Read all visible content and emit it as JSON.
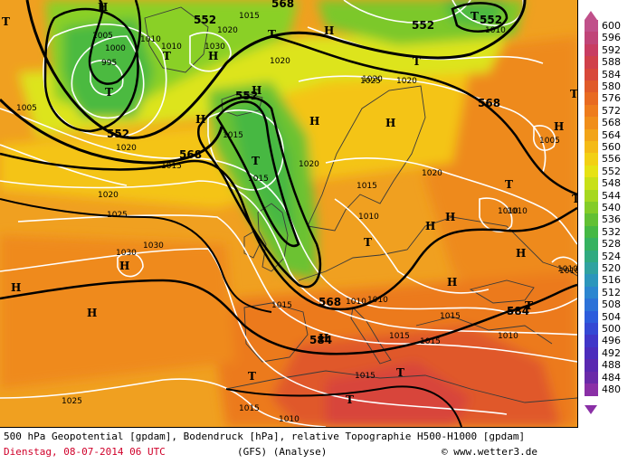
{
  "colors": {
    "background_orange": "#f0a020",
    "coast": "#3a3a3a"
  },
  "legend": {
    "items": [
      {
        "value": "600",
        "color": "#c0508a"
      },
      {
        "value": "596",
        "color": "#c04478"
      },
      {
        "value": "592",
        "color": "#c83c62"
      },
      {
        "value": "588",
        "color": "#d0404a"
      },
      {
        "value": "584",
        "color": "#d8483a"
      },
      {
        "value": "580",
        "color": "#e05a28"
      },
      {
        "value": "576",
        "color": "#e86a20"
      },
      {
        "value": "572",
        "color": "#ee7c1c"
      },
      {
        "value": "568",
        "color": "#f08e1a"
      },
      {
        "value": "564",
        "color": "#f2a418"
      },
      {
        "value": "560",
        "color": "#f4ba16"
      },
      {
        "value": "556",
        "color": "#f2d014"
      },
      {
        "value": "552",
        "color": "#e6e214"
      },
      {
        "value": "548",
        "color": "#c8e018"
      },
      {
        "value": "544",
        "color": "#a6d820"
      },
      {
        "value": "540",
        "color": "#84cc28"
      },
      {
        "value": "536",
        "color": "#62c034"
      },
      {
        "value": "532",
        "color": "#46b844"
      },
      {
        "value": "528",
        "color": "#36b260"
      },
      {
        "value": "524",
        "color": "#30aa80"
      },
      {
        "value": "520",
        "color": "#30a2a0"
      },
      {
        "value": "516",
        "color": "#2c96bc"
      },
      {
        "value": "512",
        "color": "#2c86d0"
      },
      {
        "value": "508",
        "color": "#2c72d8"
      },
      {
        "value": "504",
        "color": "#2c5cdc"
      },
      {
        "value": "500",
        "color": "#3448d4"
      },
      {
        "value": "496",
        "color": "#4036c8"
      },
      {
        "value": "492",
        "color": "#4c2cbc"
      },
      {
        "value": "488",
        "color": "#5a28b0"
      },
      {
        "value": "484",
        "color": "#6a2aa8"
      },
      {
        "value": "480",
        "color": "#8a2fa6"
      }
    ]
  },
  "map": {
    "geopotential_labels": [
      {
        "text": "552"
      },
      {
        "text": "552"
      },
      {
        "text": "552"
      },
      {
        "text": "552"
      },
      {
        "text": "552"
      },
      {
        "text": "568"
      },
      {
        "text": "568"
      },
      {
        "text": "568"
      },
      {
        "text": "584"
      },
      {
        "text": "584"
      },
      {
        "text": "568"
      }
    ],
    "isobar_labels": [
      {
        "text": "1015"
      },
      {
        "text": "1020"
      },
      {
        "text": "1005"
      },
      {
        "text": "1000"
      },
      {
        "text": "995"
      },
      {
        "text": "1010"
      },
      {
        "text": "1010"
      },
      {
        "text": "1030"
      },
      {
        "text": "1020"
      },
      {
        "text": "1005"
      },
      {
        "text": "1010"
      },
      {
        "text": "1015"
      },
      {
        "text": "1015"
      },
      {
        "text": "1020"
      },
      {
        "text": "1020"
      },
      {
        "text": "1025"
      },
      {
        "text": "1020"
      },
      {
        "text": "1015"
      },
      {
        "text": "1020"
      },
      {
        "text": "1015"
      },
      {
        "text": "1010"
      },
      {
        "text": "1020"
      },
      {
        "text": "1025"
      },
      {
        "text": "1030"
      },
      {
        "text": "1030"
      },
      {
        "text": "1010"
      },
      {
        "text": "1005"
      },
      {
        "text": "1010"
      },
      {
        "text": "1020"
      },
      {
        "text": "1010"
      },
      {
        "text": "1010"
      },
      {
        "text": "1015"
      },
      {
        "text": "1015"
      },
      {
        "text": "1015"
      },
      {
        "text": "1010"
      },
      {
        "text": "1015"
      },
      {
        "text": "1025"
      },
      {
        "text": "1015"
      },
      {
        "text": "1010"
      },
      {
        "text": "1015"
      },
      {
        "text": "1010"
      },
      {
        "text": "1010"
      }
    ],
    "pressure_centers": [
      {
        "type": "H"
      },
      {
        "type": "T"
      },
      {
        "type": "T"
      },
      {
        "type": "T"
      },
      {
        "type": "H"
      },
      {
        "type": "H"
      },
      {
        "type": "H"
      },
      {
        "type": "T"
      },
      {
        "type": "T"
      },
      {
        "type": "T"
      },
      {
        "type": "H"
      },
      {
        "type": "H"
      },
      {
        "type": "T"
      },
      {
        "type": "H"
      },
      {
        "type": "H"
      },
      {
        "type": "T"
      },
      {
        "type": "H"
      },
      {
        "type": "H"
      },
      {
        "type": "H"
      },
      {
        "type": "T"
      },
      {
        "type": "H"
      },
      {
        "type": "H"
      },
      {
        "type": "T"
      },
      {
        "type": "T"
      },
      {
        "type": "T"
      },
      {
        "type": "T"
      },
      {
        "type": "H"
      },
      {
        "type": "T"
      },
      {
        "type": "H"
      },
      {
        "type": "T"
      },
      {
        "type": "H"
      }
    ]
  },
  "footer": {
    "description": "500 hPa Geopotential [gpdam], Bodendruck [hPa], relative Topographie H500-H1000 [gpdam]",
    "date_line": "Dienstag, 08-07-2014  06 UTC",
    "model": "(GFS)  (Analyse)",
    "copyright": "© www.wetter3.de"
  }
}
